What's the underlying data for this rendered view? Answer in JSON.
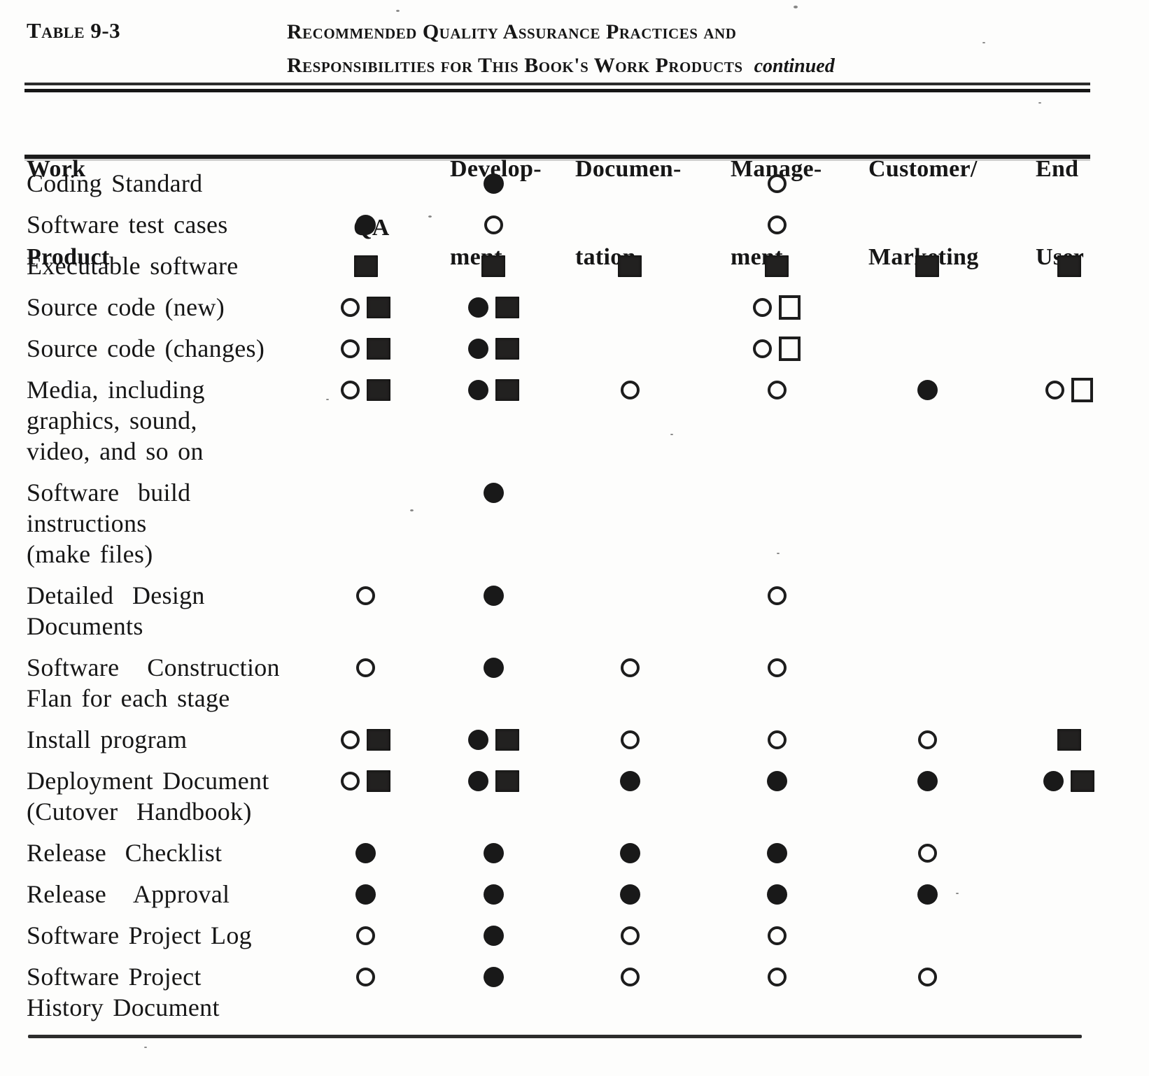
{
  "header": {
    "table_label": "Table 9-3",
    "title_line1": "Recommended Quality Assurance Practices and",
    "title_line2": "Responsibilities for This Book's Work Products",
    "title_continued": "continued"
  },
  "columns": {
    "work_product": [
      "Work",
      "Product"
    ],
    "qa": [
      "",
      "QA"
    ],
    "development": [
      "Develop-",
      "ment"
    ],
    "documentation": [
      "Documen-",
      "tation"
    ],
    "management": [
      "Manage-",
      "ment"
    ],
    "customer_marketing": [
      "Customer/",
      "Marketing"
    ],
    "end_user": [
      "End",
      "User"
    ]
  },
  "symbol_names": [
    "filled-circle",
    "open-circle",
    "filled-square",
    "open-square"
  ],
  "ink_color": "#1a1a1a",
  "paper_color": "#fdfdfc",
  "rows": [
    {
      "label": [
        "Coding Standard"
      ],
      "qa": [],
      "development": [
        "filled-circle"
      ],
      "documentation": [],
      "management": [
        "open-circle"
      ],
      "customer_marketing": [],
      "end_user": []
    },
    {
      "label": [
        "Software test cases"
      ],
      "qa": [
        "filled-circle"
      ],
      "development": [
        "open-circle"
      ],
      "documentation": [],
      "management": [
        "open-circle"
      ],
      "customer_marketing": [],
      "end_user": []
    },
    {
      "label": [
        "Executable software"
      ],
      "qa": [
        "filled-square"
      ],
      "development": [
        "filled-square"
      ],
      "documentation": [
        "filled-square"
      ],
      "management": [
        "filled-square"
      ],
      "customer_marketing": [
        "filled-square"
      ],
      "end_user": [
        "filled-square"
      ]
    },
    {
      "label": [
        "Source code (new)"
      ],
      "qa": [
        "open-circle",
        "filled-square"
      ],
      "development": [
        "filled-circle",
        "filled-square"
      ],
      "documentation": [],
      "management": [
        "open-circle",
        "open-square"
      ],
      "customer_marketing": [],
      "end_user": []
    },
    {
      "label": [
        "Source code (changes)"
      ],
      "qa": [
        "open-circle",
        "filled-square"
      ],
      "development": [
        "filled-circle",
        "filled-square"
      ],
      "documentation": [],
      "management": [
        "open-circle",
        "open-square"
      ],
      "customer_marketing": [],
      "end_user": []
    },
    {
      "label": [
        "Media, including",
        "graphics, sound,",
        "video, and so on"
      ],
      "qa": [
        "open-circle",
        "filled-square"
      ],
      "development": [
        "filled-circle",
        "filled-square"
      ],
      "documentation": [
        "open-circle"
      ],
      "management": [
        "open-circle"
      ],
      "customer_marketing": [
        "filled-circle"
      ],
      "end_user": [
        "open-circle",
        "open-square"
      ]
    },
    {
      "label": [
        "Software  build",
        "instructions",
        "(make files)"
      ],
      "qa": [],
      "development": [
        "filled-circle"
      ],
      "documentation": [],
      "management": [],
      "customer_marketing": [],
      "end_user": []
    },
    {
      "label": [
        "Detailed  Design",
        "Documents"
      ],
      "qa": [
        "open-circle"
      ],
      "development": [
        "filled-circle"
      ],
      "documentation": [],
      "management": [
        "open-circle"
      ],
      "customer_marketing": [],
      "end_user": []
    },
    {
      "label": [
        "Software   Construction",
        "Flan for each stage"
      ],
      "qa": [
        "open-circle"
      ],
      "development": [
        "filled-circle"
      ],
      "documentation": [
        "open-circle"
      ],
      "management": [
        "open-circle"
      ],
      "customer_marketing": [],
      "end_user": []
    },
    {
      "label": [
        "Install program"
      ],
      "qa": [
        "open-circle",
        "filled-square"
      ],
      "development": [
        "filled-circle",
        "filled-square"
      ],
      "documentation": [
        "open-circle"
      ],
      "management": [
        "open-circle"
      ],
      "customer_marketing": [
        "open-circle"
      ],
      "end_user": [
        "filled-square"
      ]
    },
    {
      "label": [
        "Deployment Document",
        "(Cutover  Handbook)"
      ],
      "qa": [
        "open-circle",
        "filled-square"
      ],
      "development": [
        "filled-circle",
        "filled-square"
      ],
      "documentation": [
        "filled-circle"
      ],
      "management": [
        "filled-circle"
      ],
      "customer_marketing": [
        "filled-circle"
      ],
      "end_user": [
        "filled-circle",
        "filled-square"
      ]
    },
    {
      "label": [
        "Release  Checklist"
      ],
      "qa": [
        "filled-circle"
      ],
      "development": [
        "filled-circle"
      ],
      "documentation": [
        "filled-circle"
      ],
      "management": [
        "filled-circle"
      ],
      "customer_marketing": [
        "open-circle"
      ],
      "end_user": []
    },
    {
      "label": [
        "Release   Approval"
      ],
      "qa": [
        "filled-circle"
      ],
      "development": [
        "filled-circle"
      ],
      "documentation": [
        "filled-circle"
      ],
      "management": [
        "filled-circle"
      ],
      "customer_marketing": [
        "filled-circle"
      ],
      "end_user": []
    },
    {
      "label": [
        "Software Project Log"
      ],
      "qa": [
        "open-circle"
      ],
      "development": [
        "filled-circle"
      ],
      "documentation": [
        "open-circle"
      ],
      "management": [
        "open-circle"
      ],
      "customer_marketing": [],
      "end_user": []
    },
    {
      "label": [
        "Software Project",
        "History Document"
      ],
      "qa": [
        "open-circle"
      ],
      "development": [
        "filled-circle"
      ],
      "documentation": [
        "open-circle"
      ],
      "management": [
        "open-circle"
      ],
      "customer_marketing": [
        "open-circle"
      ],
      "end_user": []
    }
  ]
}
